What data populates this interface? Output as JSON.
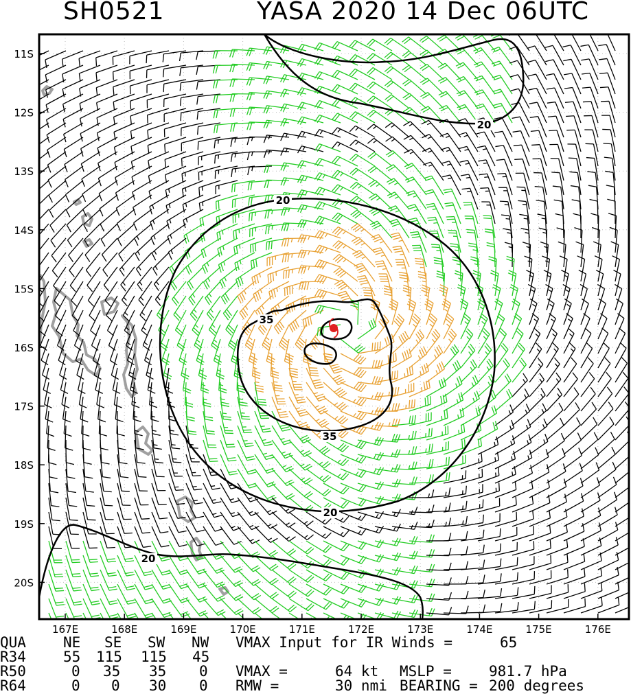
{
  "header": {
    "storm_id": "SH0521",
    "storm_info": "YASA 2020 14 Dec 06UTC"
  },
  "map": {
    "lon_labels": [
      "167E",
      "168E",
      "169E",
      "170E",
      "171E",
      "172E",
      "173E",
      "174E",
      "175E",
      "176E"
    ],
    "lat_labels": [
      "11S",
      "12S",
      "13S",
      "14S",
      "15S",
      "16S",
      "17S",
      "18S",
      "19S",
      "20S"
    ],
    "contour_labels": [
      "20",
      "20",
      "20",
      "35",
      "35",
      "20"
    ],
    "storm_center": {
      "lon": 171.7,
      "lat": -15.7
    },
    "colors": {
      "wind_black": "#000000",
      "wind_green": "#22cc22",
      "wind_orange": "#e8a030",
      "land": "#a0a0a0",
      "center": "#e02020"
    }
  },
  "table": {
    "header": {
      "c0": "QUA",
      "c1": "NE",
      "c2": "SE",
      "c3": "SW",
      "c4": "NW",
      "note": "VMAX Input for IR Winds =",
      "vmax_in": "65"
    },
    "r34": {
      "c0": "R34",
      "c1": "55",
      "c2": "115",
      "c3": "115",
      "c4": "45"
    },
    "r50": {
      "c0": "R50",
      "c1": "0",
      "c2": "35",
      "c3": "35",
      "c4": "0",
      "note": "VMAX =",
      "vmax": "64 kt",
      "mslp_lbl": "MSLP =",
      "mslp": "981.7 hPa"
    },
    "r64": {
      "c0": "R64",
      "c1": "0",
      "c2": "0",
      "c3": "30",
      "c4": "0",
      "note": "RMW =",
      "rmw": "30 nmi",
      "bear_lbl": "BEARING =",
      "bearing": "200 degrees"
    }
  }
}
